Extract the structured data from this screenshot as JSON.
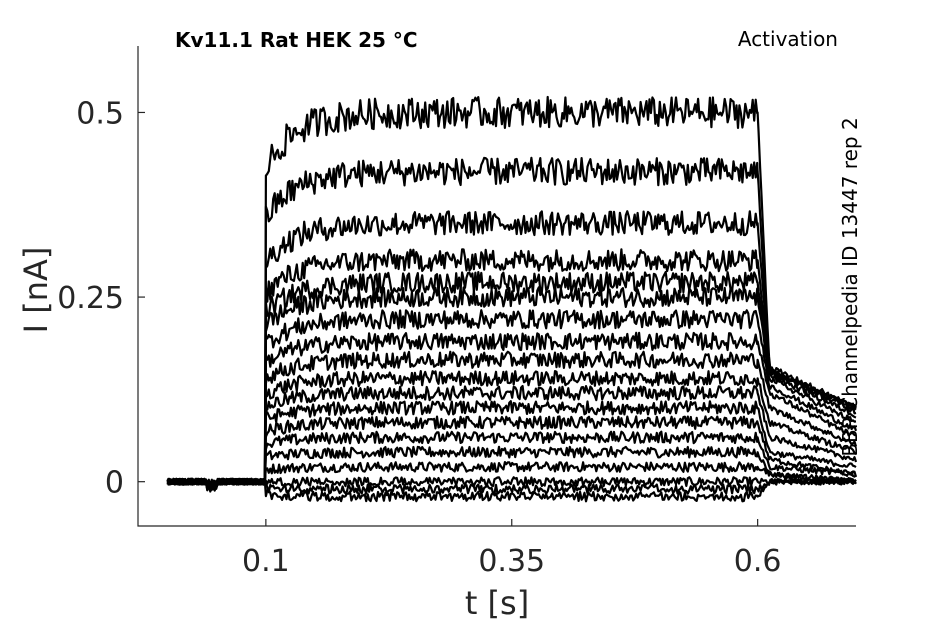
{
  "chart_data": {
    "type": "line",
    "title_left": "Kv11.1  Rat  HEK  25 °C",
    "title_right": "Activation",
    "side_label": "BBP Channelpedia ID 13447 rep 2",
    "xlabel": "t [s]",
    "ylabel": "I [nA]",
    "xlim": [
      -0.03,
      0.7
    ],
    "ylim": [
      -0.06,
      0.59
    ],
    "xticks": [
      0.1,
      0.35,
      0.6
    ],
    "xtick_labels": [
      "0.1",
      "0.35",
      "0.6"
    ],
    "yticks": [
      0,
      0.25,
      0.5
    ],
    "ytick_labels": [
      "0",
      "0.25",
      "0.5"
    ],
    "grid": false,
    "x_start": 0.0,
    "pulse_start": 0.1,
    "pulse_end": 0.6,
    "x_end": 0.7,
    "series_color": "#000000",
    "steady_levels": [
      -0.02,
      -0.01,
      0.0,
      0.02,
      0.04,
      0.06,
      0.08,
      0.1,
      0.12,
      0.14,
      0.165,
      0.19,
      0.22,
      0.25,
      0.27,
      0.3,
      0.35,
      0.42,
      0.5
    ],
    "tail_peaks": [
      0.0,
      0.0,
      0.0,
      0.01,
      0.01,
      0.02,
      0.03,
      0.04,
      0.06,
      0.08,
      0.1,
      0.12,
      0.13,
      0.14,
      0.145,
      0.15,
      0.15,
      0.15,
      0.155
    ],
    "tail_ends": [
      0.0,
      0.0,
      0.0,
      0.0,
      0.0,
      0.01,
      0.01,
      0.02,
      0.03,
      0.04,
      0.05,
      0.06,
      0.07,
      0.08,
      0.09,
      0.095,
      0.1,
      0.1,
      0.1
    ]
  }
}
